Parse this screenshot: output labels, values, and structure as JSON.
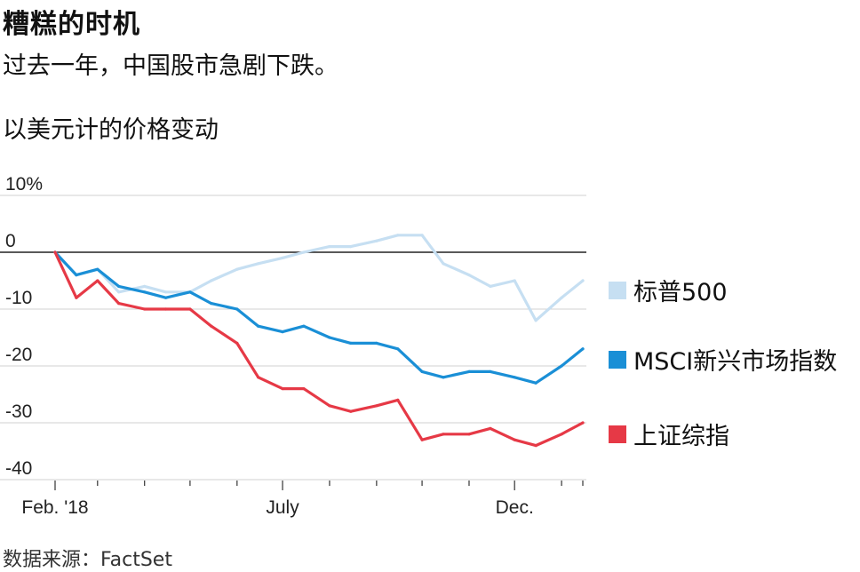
{
  "title": "糟糕的时机",
  "subtitle": "过去一年，中国股市急剧下跌。",
  "unit_label": "以美元计的价格变动",
  "source": "数据来源：FactSet",
  "chart_data": {
    "type": "line",
    "x_tick_labels": [
      "Feb. '18",
      "July",
      "Dec."
    ],
    "y_tick_labels": [
      "10%",
      "0",
      "-10",
      "-20",
      "-30",
      "-40"
    ],
    "ylim": [
      -40,
      10
    ],
    "grid": true,
    "legend_position": "right",
    "x": [
      "2018-02-01",
      "2018-02-15",
      "2018-03-01",
      "2018-03-15",
      "2018-04-01",
      "2018-04-15",
      "2018-05-01",
      "2018-05-15",
      "2018-06-01",
      "2018-06-15",
      "2018-07-01",
      "2018-07-15",
      "2018-08-01",
      "2018-08-15",
      "2018-09-01",
      "2018-09-15",
      "2018-10-01",
      "2018-10-15",
      "2018-11-01",
      "2018-11-15",
      "2018-12-01",
      "2018-12-15",
      "2019-01-01",
      "2019-01-15"
    ],
    "series": [
      {
        "name": "标普500",
        "color": "#c6dff2",
        "values": [
          0,
          -4,
          -3,
          -7,
          -6,
          -7,
          -7,
          -5,
          -3,
          -2,
          -1,
          0,
          1,
          1,
          2,
          3,
          3,
          -2,
          -4,
          -6,
          -5,
          -12,
          -8,
          -5
        ]
      },
      {
        "name": "MSCI新兴市场指数",
        "color": "#1a8fd6",
        "values": [
          0,
          -4,
          -3,
          -6,
          -7,
          -8,
          -7,
          -9,
          -10,
          -13,
          -14,
          -13,
          -15,
          -16,
          -16,
          -17,
          -21,
          -22,
          -21,
          -21,
          -22,
          -23,
          -20,
          -17
        ]
      },
      {
        "name": "上证综指",
        "color": "#e63946",
        "values": [
          0,
          -8,
          -5,
          -9,
          -10,
          -10,
          -10,
          -13,
          -16,
          -22,
          -24,
          -24,
          -27,
          -28,
          -27,
          -26,
          -33,
          -32,
          -32,
          -31,
          -33,
          -34,
          -32,
          -30
        ]
      }
    ]
  }
}
